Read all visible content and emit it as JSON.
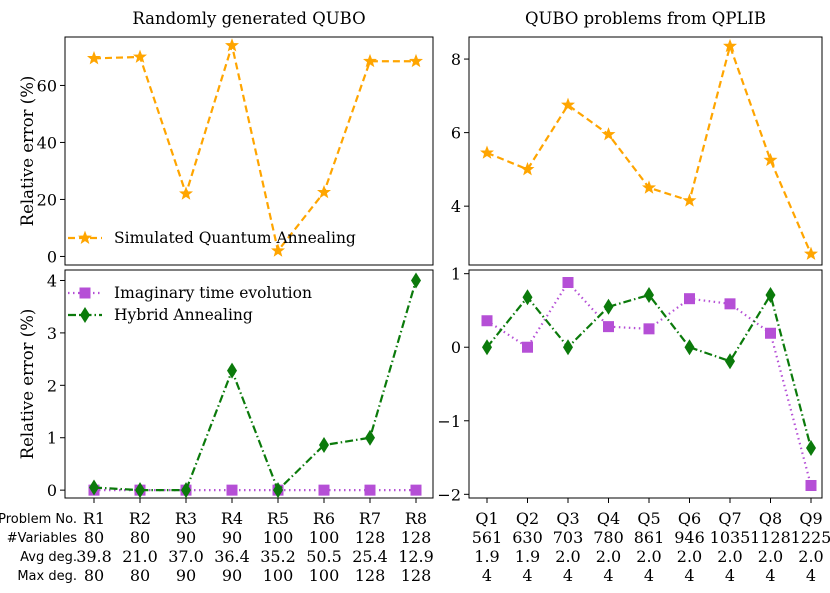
{
  "chart_data": [
    {
      "type": "line",
      "title": "Randomly generated QUBO",
      "ylabel": "Relative error (%)",
      "ylim": [
        -3,
        77
      ],
      "yticks": [
        0,
        20,
        40,
        60
      ],
      "categories": [
        "R1",
        "R2",
        "R3",
        "R4",
        "R5",
        "R6",
        "R7",
        "R8"
      ],
      "legend_location": "lower-left",
      "series": [
        {
          "name": "Simulated Quantum Annealing",
          "color": "#FFA500",
          "marker": "star",
          "linestyle": "dashed",
          "values": [
            69.5,
            70.0,
            22.0,
            74.0,
            2.0,
            22.5,
            68.5,
            68.5
          ]
        }
      ]
    },
    {
      "type": "line",
      "title": "QUBO problems from QPLIB",
      "ylabel": "",
      "ylim": [
        2.4,
        8.6
      ],
      "yticks": [
        4,
        6,
        8
      ],
      "categories": [
        "Q1",
        "Q2",
        "Q3",
        "Q4",
        "Q5",
        "Q6",
        "Q7",
        "Q8",
        "Q9"
      ],
      "series": [
        {
          "name": "Simulated Quantum Annealing",
          "color": "#FFA500",
          "marker": "star",
          "linestyle": "dashed",
          "values": [
            5.45,
            5.0,
            6.75,
            5.95,
            4.5,
            4.15,
            8.35,
            5.25,
            2.7
          ]
        }
      ]
    },
    {
      "type": "line",
      "title": "",
      "ylabel": "Relative error (%)",
      "ylim": [
        -0.15,
        4.2
      ],
      "yticks": [
        0,
        1,
        2,
        3,
        4
      ],
      "categories": [
        "R1",
        "R2",
        "R3",
        "R4",
        "R5",
        "R6",
        "R7",
        "R8"
      ],
      "legend_location": "top-left",
      "series": [
        {
          "name": "Imaginary time evolution",
          "color": "#B54FD6",
          "marker": "square",
          "linestyle": "dotted",
          "values": [
            0,
            0,
            0,
            0,
            0,
            0,
            0,
            0
          ]
        },
        {
          "name": "Hybrid Annealing",
          "color": "#0B7A0B",
          "marker": "diamond",
          "linestyle": "dashdot",
          "values": [
            0.05,
            0.0,
            0.0,
            2.28,
            0.0,
            0.86,
            1.0,
            4.0
          ]
        }
      ]
    },
    {
      "type": "line",
      "title": "",
      "ylabel": "",
      "ylim": [
        -2.05,
        1.05
      ],
      "yticks": [
        -2,
        -1,
        0,
        1
      ],
      "ytick_labels": [
        "−2",
        "−1",
        "0",
        "1"
      ],
      "categories": [
        "Q1",
        "Q2",
        "Q3",
        "Q4",
        "Q5",
        "Q6",
        "Q7",
        "Q8",
        "Q9"
      ],
      "series": [
        {
          "name": "Imaginary time evolution",
          "color": "#B54FD6",
          "marker": "square",
          "linestyle": "dotted",
          "values": [
            0.36,
            0.0,
            0.88,
            0.28,
            0.25,
            0.66,
            0.59,
            0.19,
            -1.88
          ]
        },
        {
          "name": "Hybrid Annealing",
          "color": "#0B7A0B",
          "marker": "diamond",
          "linestyle": "dashdot",
          "values": [
            0.0,
            0.68,
            0.0,
            0.55,
            0.71,
            0.0,
            -0.19,
            0.71,
            -1.37
          ]
        }
      ]
    }
  ],
  "table": {
    "row_labels": [
      "Problem No.",
      "#Variables",
      "Avg deg.",
      "Max deg."
    ],
    "left": {
      "problem": [
        "R1",
        "R2",
        "R3",
        "R4",
        "R5",
        "R6",
        "R7",
        "R8"
      ],
      "variables": [
        "80",
        "80",
        "90",
        "90",
        "100",
        "100",
        "128",
        "128"
      ],
      "avg_deg": [
        "39.8",
        "21.0",
        "37.0",
        "36.4",
        "35.2",
        "50.5",
        "25.4",
        "12.9"
      ],
      "max_deg": [
        "80",
        "80",
        "90",
        "90",
        "100",
        "100",
        "128",
        "128"
      ]
    },
    "right": {
      "problem": [
        "Q1",
        "Q2",
        "Q3",
        "Q4",
        "Q5",
        "Q6",
        "Q7",
        "Q8",
        "Q9"
      ],
      "variables": [
        "561",
        "630",
        "703",
        "780",
        "861",
        "946",
        "1035",
        "1128",
        "1225"
      ],
      "avg_deg": [
        "1.9",
        "1.9",
        "2.0",
        "2.0",
        "2.0",
        "2.0",
        "2.0",
        "2.0",
        "2.0"
      ],
      "max_deg": [
        "4",
        "4",
        "4",
        "4",
        "4",
        "4",
        "4",
        "4",
        "4"
      ]
    }
  }
}
